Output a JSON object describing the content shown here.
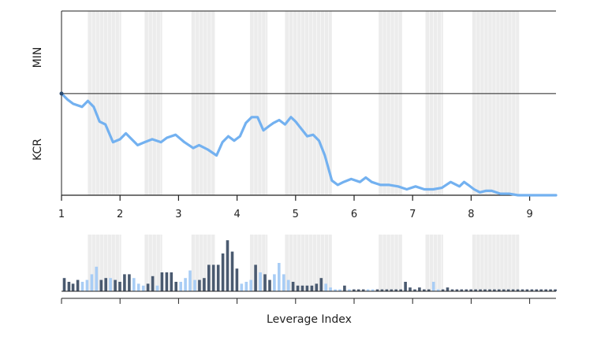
{
  "chart_data": {
    "type": "line",
    "xlabel": "Leverage Index",
    "panel_labels": [
      "MIN",
      "KCR"
    ],
    "x_ticks": [
      "1",
      "2",
      "3",
      "4",
      "5",
      "6",
      "7",
      "8",
      "9"
    ],
    "xlim": [
      1,
      9.45
    ],
    "shaded_bands": [
      [
        1.45,
        2.02
      ],
      [
        2.42,
        2.72
      ],
      [
        3.22,
        3.62
      ],
      [
        4.22,
        4.52
      ],
      [
        4.82,
        5.62
      ],
      [
        6.42,
        6.82
      ],
      [
        7.22,
        7.52
      ],
      [
        8.02,
        8.82
      ]
    ],
    "colors": {
      "line": "#73b1f0",
      "band": "#ececec",
      "axis": "#222222",
      "bar_dark": "#4a5a70",
      "bar_light": "#a9cdf5"
    },
    "series": [
      {
        "x": [
          1.0,
          1.1,
          1.2,
          1.35,
          1.45,
          1.55,
          1.65,
          1.75,
          1.88,
          2.0,
          2.1,
          2.2,
          2.3,
          2.42,
          2.55,
          2.7,
          2.8,
          2.95,
          3.1,
          3.25,
          3.35,
          3.5,
          3.65,
          3.75,
          3.85,
          3.95,
          4.05,
          4.15,
          4.25,
          4.35,
          4.45,
          4.55,
          4.62,
          4.72,
          4.82,
          4.92,
          5.0,
          5.1,
          5.2,
          5.3,
          5.4,
          5.5,
          5.62,
          5.72,
          5.82,
          5.95,
          6.1,
          6.2,
          6.3,
          6.45,
          6.6,
          6.75,
          6.9,
          7.05,
          7.2,
          7.35,
          7.5,
          7.65,
          7.8,
          7.88,
          7.95,
          8.05,
          8.15,
          8.25,
          8.35,
          8.5,
          8.65,
          8.8,
          9.0,
          9.2,
          9.45
        ],
        "y": [
          0.72,
          0.7,
          0.685,
          0.675,
          0.695,
          0.675,
          0.625,
          0.615,
          0.555,
          0.565,
          0.585,
          0.565,
          0.545,
          0.555,
          0.565,
          0.555,
          0.57,
          0.58,
          0.555,
          0.535,
          0.545,
          0.53,
          0.51,
          0.555,
          0.575,
          0.56,
          0.575,
          0.62,
          0.64,
          0.64,
          0.595,
          0.61,
          0.62,
          0.63,
          0.615,
          0.64,
          0.625,
          0.6,
          0.575,
          0.58,
          0.56,
          0.51,
          0.425,
          0.41,
          0.42,
          0.43,
          0.42,
          0.435,
          0.42,
          0.41,
          0.41,
          0.405,
          0.395,
          0.405,
          0.395,
          0.395,
          0.4,
          0.42,
          0.405,
          0.42,
          0.41,
          0.395,
          0.385,
          0.39,
          0.39,
          0.38,
          0.38,
          0.375,
          0.375,
          0.375,
          0.375
        ]
      }
    ],
    "ylim": [
      0.375,
      1.0
    ],
    "divider_y": 0.72,
    "volume": {
      "x": [
        1.05,
        1.13,
        1.2,
        1.28,
        1.36,
        1.44,
        1.52,
        1.6,
        1.68,
        1.76,
        1.84,
        1.92,
        2.0,
        2.08,
        2.16,
        2.24,
        2.32,
        2.4,
        2.48,
        2.56,
        2.64,
        2.72,
        2.8,
        2.88,
        2.96,
        3.04,
        3.12,
        3.2,
        3.28,
        3.36,
        3.44,
        3.52,
        3.6,
        3.68,
        3.76,
        3.84,
        3.92,
        4.0,
        4.08,
        4.16,
        4.24,
        4.32,
        4.4,
        4.48,
        4.56,
        4.64,
        4.72,
        4.8,
        4.88,
        4.96,
        5.04,
        5.12,
        5.2,
        5.28,
        5.36,
        5.44,
        5.52,
        5.6,
        5.68,
        5.76,
        5.84,
        5.92,
        6.0,
        6.08,
        6.16,
        6.24,
        6.32,
        6.4,
        6.48,
        6.56,
        6.64,
        6.72,
        6.8,
        6.88,
        6.96,
        7.04,
        7.12,
        7.2,
        7.28,
        7.36,
        7.44,
        7.52,
        7.6,
        7.68,
        7.76,
        7.84,
        7.92,
        8.0,
        8.08,
        8.16,
        8.24,
        8.32,
        8.4,
        8.48,
        8.56,
        8.64,
        8.72,
        8.8,
        8.88,
        8.96,
        9.04,
        9.12,
        9.2,
        9.28,
        9.36,
        9.44
      ],
      "values": [
        7,
        5,
        4,
        6,
        5,
        6,
        9,
        13,
        6,
        7,
        7,
        6,
        5,
        9,
        9,
        7,
        4,
        3,
        4,
        8,
        3,
        10,
        10,
        10,
        5,
        5,
        7,
        11,
        6,
        6,
        7,
        14,
        14,
        14,
        20,
        27,
        21,
        12,
        4,
        5,
        6,
        14,
        10,
        9,
        6,
        9,
        15,
        9,
        6,
        5,
        3,
        3,
        3,
        3,
        4,
        7,
        4,
        2,
        1,
        1,
        3,
        1,
        1,
        1,
        1,
        1,
        1,
        1,
        1,
        1,
        1,
        1,
        1,
        5,
        2,
        1,
        2,
        1,
        1,
        5,
        1,
        1,
        2,
        1,
        1,
        1,
        1,
        1,
        1,
        1,
        1,
        1,
        1,
        1,
        1,
        1,
        1,
        1,
        1,
        1,
        1,
        1,
        1,
        1,
        1,
        1
      ],
      "light": [
        0,
        0,
        0,
        0,
        1,
        1,
        1,
        1,
        0,
        0,
        1,
        0,
        0,
        0,
        0,
        1,
        1,
        1,
        0,
        0,
        1,
        0,
        0,
        0,
        0,
        1,
        1,
        1,
        1,
        0,
        0,
        0,
        0,
        0,
        0,
        0,
        0,
        0,
        1,
        1,
        1,
        0,
        1,
        0,
        0,
        1,
        1,
        1,
        1,
        0,
        0,
        0,
        0,
        0,
        0,
        0,
        1,
        1,
        1,
        1,
        0,
        1,
        0,
        0,
        0,
        1,
        1,
        0,
        0,
        0,
        0,
        0,
        0,
        0,
        0,
        0,
        0,
        0,
        0,
        1,
        1,
        0,
        0,
        0,
        0,
        0,
        0,
        0,
        0,
        0,
        0,
        0,
        0,
        0,
        0,
        0,
        0,
        0,
        0,
        0,
        0,
        0,
        0,
        0,
        0,
        0
      ],
      "ylim": [
        0,
        30
      ]
    }
  }
}
